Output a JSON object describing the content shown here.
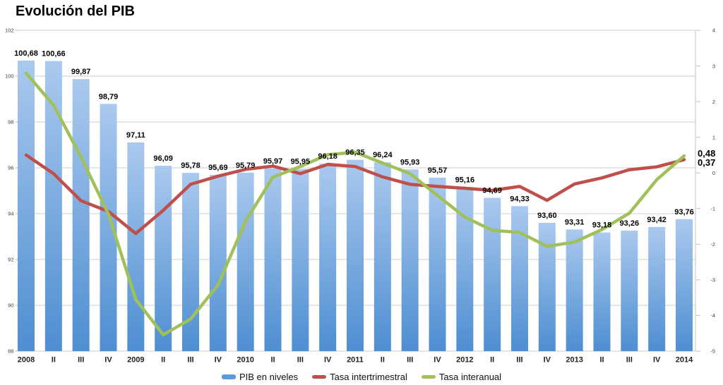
{
  "title": "Evolución del PIB",
  "annotations": {
    "green_end": "0,48",
    "red_end": "0,37"
  },
  "legend": [
    {
      "label": "PIB en niveles",
      "type": "bar",
      "color": "#5e9ad8"
    },
    {
      "label": "Tasa intertrimestral",
      "type": "line",
      "color": "#bf4f4a"
    },
    {
      "label": "Tasa interanual",
      "type": "line",
      "color": "#a0c15a"
    }
  ],
  "colors": {
    "bar_top": "#aac9ee",
    "bar_bottom": "#4e8ed2",
    "red": "#bf4f4a",
    "green": "#a0c15a",
    "grid": "#cccccc",
    "axis_line": "#bfbfbf",
    "tick_text": "#3c3c3c"
  },
  "chart_data": {
    "type": "bar",
    "subtype": "combo-bar-lines",
    "title": "Evolución del PIB",
    "categories": [
      "2008",
      "II",
      "III",
      "IV",
      "2009",
      "II",
      "III",
      "IV",
      "2010",
      "II",
      "III",
      "IV",
      "2011",
      "II",
      "III",
      "IV",
      "2012",
      "II",
      "III",
      "IV",
      "2013",
      "II",
      "III",
      "IV",
      "2014"
    ],
    "series": [
      {
        "name": "PIB en niveles",
        "type": "bar",
        "axis": "left",
        "values": [
          100.68,
          100.66,
          99.87,
          98.79,
          97.11,
          96.09,
          95.78,
          95.69,
          95.79,
          95.97,
          95.95,
          96.18,
          96.35,
          96.24,
          95.93,
          95.57,
          95.16,
          94.69,
          94.33,
          93.6,
          93.31,
          93.18,
          93.26,
          93.42,
          93.76
        ],
        "labels": [
          "100,68",
          "100,66",
          "99,87",
          "98,79",
          "97,11",
          "96,09",
          "95,78",
          "95,69",
          "95,79",
          "95,97",
          "95,95",
          "96,18",
          "96,35",
          "96,24",
          "95,93",
          "95,57",
          "95,16",
          "94,69",
          "94,33",
          "93,60",
          "93,31",
          "93,18",
          "93,26",
          "93,42",
          "93,76"
        ]
      },
      {
        "name": "Tasa intertrimestral",
        "type": "line",
        "axis": "right",
        "color": "#bf4f4a",
        "values": [
          0.5,
          -0.02,
          -0.78,
          -1.08,
          -1.7,
          -1.05,
          -0.32,
          -0.09,
          0.1,
          0.19,
          -0.02,
          0.24,
          0.18,
          -0.11,
          -0.32,
          -0.38,
          -0.43,
          -0.49,
          -0.38,
          -0.77,
          -0.31,
          -0.14,
          0.09,
          0.17,
          0.37
        ]
      },
      {
        "name": "Tasa interanual",
        "type": "line",
        "axis": "right",
        "color": "#a0c15a",
        "values": [
          2.8,
          1.9,
          0.45,
          -1.15,
          -3.55,
          -4.54,
          -4.1,
          -3.14,
          -1.36,
          -0.12,
          0.18,
          0.51,
          0.58,
          0.28,
          -0.02,
          -0.63,
          -1.24,
          -1.61,
          -1.67,
          -2.06,
          -1.94,
          -1.59,
          -1.13,
          -0.19,
          0.48
        ]
      }
    ],
    "left_axis": {
      "min": 88,
      "max": 102,
      "ticks": [
        102,
        100,
        98,
        96,
        94,
        92,
        90,
        88
      ]
    },
    "right_axis": {
      "min": -5,
      "max": 4,
      "ticks": [
        4,
        3,
        2,
        1,
        0,
        -1,
        -2,
        -3,
        -4,
        -5
      ]
    },
    "grid": true,
    "legend_position": "bottom",
    "end_labels": [
      {
        "series": "Tasa interanual",
        "text": "0,48"
      },
      {
        "series": "Tasa intertrimestral",
        "text": "0,37"
      }
    ]
  }
}
